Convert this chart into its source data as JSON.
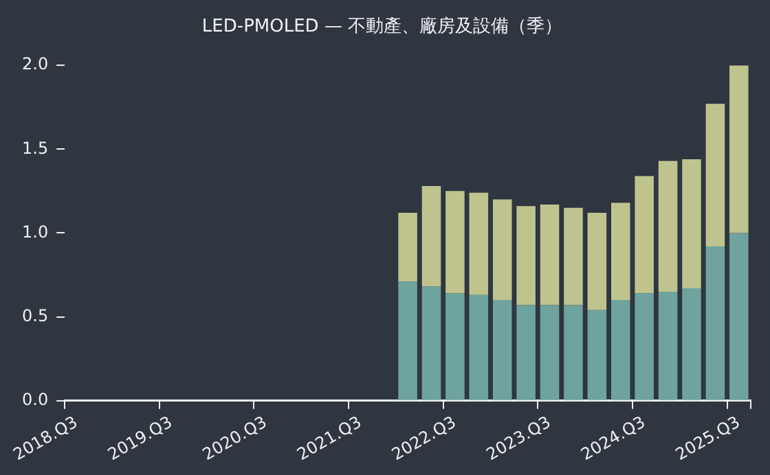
{
  "chart_data": {
    "type": "bar",
    "title": "LED-PMOLED — 不動產、廠房及設備（季）",
    "categories": [
      "2018.Q3",
      null,
      null,
      null,
      "2019.Q3",
      null,
      null,
      null,
      "2020.Q3",
      null,
      null,
      null,
      "2021.Q3",
      null,
      null,
      null,
      "2022.Q3",
      null,
      null,
      null,
      "2023.Q3",
      null,
      null,
      null,
      "2024.Q3",
      null,
      null,
      null,
      "2025.Q3"
    ],
    "series": [
      {
        "color": "#6fa39e",
        "values": [
          null,
          null,
          null,
          null,
          null,
          null,
          null,
          null,
          null,
          null,
          null,
          null,
          null,
          null,
          0.71,
          0.68,
          0.64,
          0.63,
          0.6,
          0.57,
          0.57,
          0.57,
          0.54,
          0.6,
          0.64,
          0.65,
          0.67,
          0.92,
          1.0
        ]
      },
      {
        "color": "#bfc48e",
        "values": [
          null,
          null,
          null,
          null,
          null,
          null,
          null,
          null,
          null,
          null,
          null,
          null,
          null,
          null,
          0.41,
          0.6,
          0.61,
          0.61,
          0.6,
          0.59,
          0.6,
          0.58,
          0.58,
          0.58,
          0.7,
          0.78,
          0.77,
          0.85,
          1.0
        ]
      }
    ],
    "stacked": true,
    "ylim": [
      0,
      2
    ],
    "yticks": [
      {
        "value": 0,
        "label": "0.0"
      },
      0.5,
      {
        "value": 1,
        "label": "1.0"
      },
      1.5,
      {
        "value": 2,
        "label": "2.0"
      }
    ],
    "grid": false,
    "legend": false
  }
}
